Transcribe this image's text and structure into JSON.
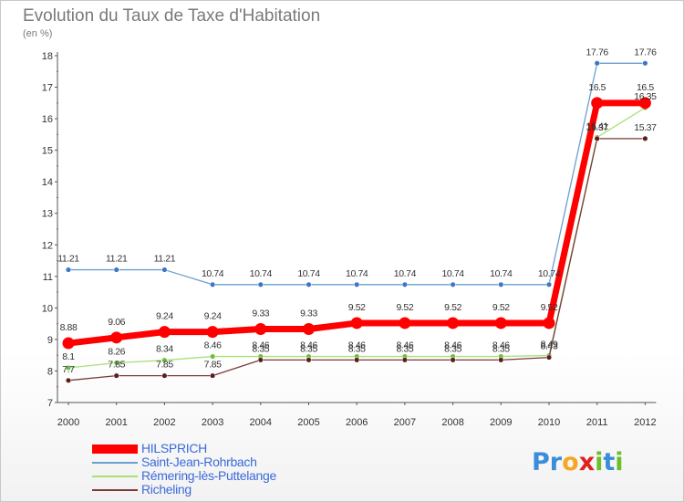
{
  "title": "Evolution du Taux de Taxe d'Habitation",
  "unit_label": "(en %)",
  "logo": {
    "text": "Proxiti",
    "letters": [
      {
        "ch": "P",
        "color": "#3a8dd8"
      },
      {
        "ch": "r",
        "color": "#3a8dd8"
      },
      {
        "ch": "o",
        "color": "#f5a623"
      },
      {
        "ch": "x",
        "color": "#e02020"
      },
      {
        "ch": "i",
        "color": "#6cbf2a"
      },
      {
        "ch": "t",
        "color": "#3a8dd8"
      },
      {
        "ch": "i",
        "color": "#6cbf2a"
      }
    ]
  },
  "chart_data": {
    "type": "line",
    "title": "Evolution du Taux de Taxe d'Habitation",
    "ylabel": "(en %)",
    "xlabel": "",
    "ylim": [
      7,
      18
    ],
    "yticks": [
      7,
      8,
      9,
      10,
      11,
      12,
      13,
      14,
      15,
      16,
      17,
      18
    ],
    "x": [
      "2000",
      "2001",
      "2002",
      "2003",
      "2004",
      "2005",
      "2006",
      "2007",
      "2008",
      "2009",
      "2010",
      "2011",
      "2012"
    ],
    "grid": false,
    "legend_placement": "bottom-left",
    "series": [
      {
        "name": "Saint-Jean-Rohrbach",
        "color": "#6a9fd0",
        "marker": "#3a78c2",
        "width": 1.3,
        "values": [
          11.21,
          11.21,
          11.21,
          10.74,
          10.74,
          10.74,
          10.74,
          10.74,
          10.74,
          10.74,
          10.74,
          17.76,
          17.76
        ],
        "labels": [
          "11.21",
          "11.21",
          "11.21",
          "10.74",
          "10.74",
          "10.74",
          "10.74",
          "10.74",
          "10.74",
          "10.74",
          "10.74",
          "17.76",
          "17.76"
        ],
        "label_pos": "above"
      },
      {
        "name": "Rémering-lès-Puttelange",
        "color": "#a8e07a",
        "marker": "#6cbf3a",
        "width": 1.3,
        "values": [
          8.1,
          8.26,
          8.34,
          8.46,
          8.46,
          8.46,
          8.46,
          8.46,
          8.46,
          8.46,
          8.49,
          15.41,
          16.35
        ],
        "labels": [
          "8.1",
          "8.26",
          "8.34",
          "8.46",
          "8.46",
          "8.46",
          "8.46",
          "8.46",
          "8.46",
          "8.46",
          "8.49",
          "15.41",
          "16.35"
        ],
        "label_pos": "above"
      },
      {
        "name": "Richeling",
        "color": "#7a3a3a",
        "marker": "#5a1e1e",
        "width": 1.3,
        "values": [
          7.7,
          7.85,
          7.85,
          7.85,
          8.35,
          8.35,
          8.35,
          8.35,
          8.35,
          8.35,
          8.43,
          15.37,
          15.37
        ],
        "labels": [
          "7.7",
          "7.85",
          "7.85",
          "7.85",
          "8.35",
          "8.35",
          "8.35",
          "8.35",
          "8.35",
          "8.35",
          "8.43",
          "15.37",
          "15.37"
        ],
        "label_pos": "above"
      },
      {
        "name": "HILSPRICH",
        "color": "#ff0000",
        "marker": "#ff0000",
        "width": 7,
        "values": [
          8.88,
          9.06,
          9.24,
          9.24,
          9.33,
          9.33,
          9.52,
          9.52,
          9.52,
          9.52,
          9.52,
          16.5,
          16.5
        ],
        "labels": [
          "8.88",
          "9.06",
          "9.24",
          "9.24",
          "9.33",
          "9.33",
          "9.52",
          "9.52",
          "9.52",
          "9.52",
          "9.52",
          "16.5",
          "16.5"
        ],
        "label_pos": "above"
      }
    ],
    "legend": [
      {
        "name": "HILSPRICH",
        "color": "#ff0000"
      },
      {
        "name": "Saint-Jean-Rohrbach",
        "color": "#6a9fd0"
      },
      {
        "name": "Rémering-lès-Puttelange",
        "color": "#a8e07a"
      },
      {
        "name": "Richeling",
        "color": "#7a3a3a"
      }
    ]
  }
}
